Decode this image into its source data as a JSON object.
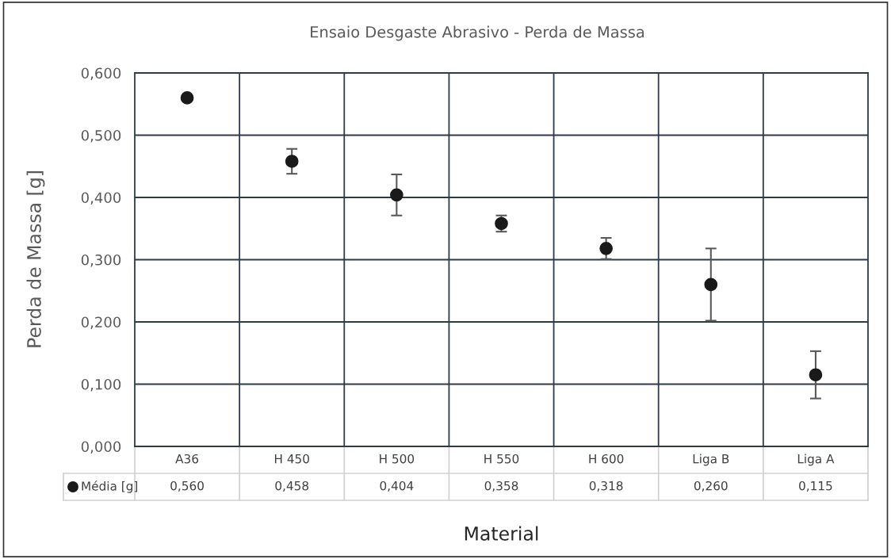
{
  "chart_data": {
    "type": "scatter",
    "title": "Ensaio Desgaste Abrasivo - Perda de Massa",
    "xlabel": "Material",
    "ylabel": "Perda de Massa [g]",
    "categories": [
      "A36",
      "H 450",
      "H 500",
      "H 550",
      "H 600",
      "Liga B",
      "Liga A"
    ],
    "series": [
      {
        "name": "Média [g]",
        "color": "#1a1a1a",
        "values": [
          0.56,
          0.458,
          0.404,
          0.358,
          0.318,
          0.26,
          0.115
        ],
        "errors": [
          null,
          0.02,
          0.033,
          0.013,
          0.017,
          0.058,
          0.038
        ],
        "value_labels": [
          "0,560",
          "0,458",
          "0,404",
          "0,358",
          "0,318",
          "0,260",
          "0,115"
        ]
      }
    ],
    "ylim": [
      0,
      0.6
    ],
    "yticks": [
      {
        "value": 0,
        "label": "0,000"
      },
      {
        "value": 0.1,
        "label": "0,100"
      },
      {
        "value": 0.2,
        "label": "0,200"
      },
      {
        "value": 0.3,
        "label": "0,300"
      },
      {
        "value": 0.4,
        "label": "0,400"
      },
      {
        "value": 0.5,
        "label": "0,500"
      },
      {
        "value": 0.6,
        "label": "0,600"
      }
    ],
    "grid": true,
    "marker": "circle"
  }
}
